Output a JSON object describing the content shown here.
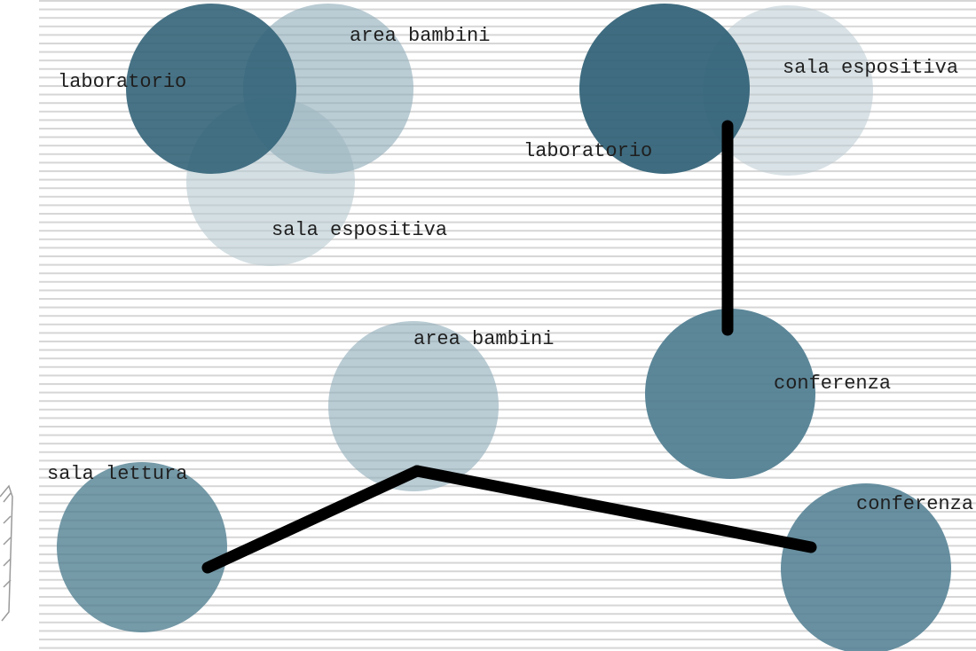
{
  "colors": {
    "dark": "#2f6075",
    "medium": "#4e7d90",
    "light": "#8fadba",
    "pale": "#b9cbd2",
    "stripe": "#d6d6d6",
    "connector": "#000000"
  },
  "clusters": [
    {
      "name": "cluster-top-left",
      "nodes": [
        {
          "id": "tl-area-bambini",
          "label": "area bambini",
          "tone": "light"
        },
        {
          "id": "tl-laboratorio",
          "label": "laboratorio",
          "tone": "dark"
        },
        {
          "id": "tl-sala-espositiva",
          "label": "sala espositiva",
          "tone": "pale"
        }
      ]
    },
    {
      "name": "cluster-top-right",
      "nodes": [
        {
          "id": "tr-sala-espositiva",
          "label": "sala espositiva",
          "tone": "pale"
        },
        {
          "id": "tr-laboratorio",
          "label": "laboratorio",
          "tone": "dark"
        },
        {
          "id": "tr-conferenza",
          "label": "conferenza",
          "tone": "medium"
        }
      ]
    },
    {
      "name": "cluster-bottom",
      "nodes": [
        {
          "id": "b-area-bambini",
          "label": "area bambini",
          "tone": "light"
        },
        {
          "id": "b-sala-lettura",
          "label": "sala lettura",
          "tone": "medium"
        },
        {
          "id": "b-conferenza",
          "label": "conferenza",
          "tone": "medium"
        }
      ]
    }
  ],
  "connections": [
    {
      "from": "tr-laboratorio",
      "to": "tr-conferenza"
    },
    {
      "from": "b-sala-lettura",
      "to": "b-area-bambini"
    },
    {
      "from": "b-area-bambini",
      "to": "b-conferenza"
    }
  ]
}
